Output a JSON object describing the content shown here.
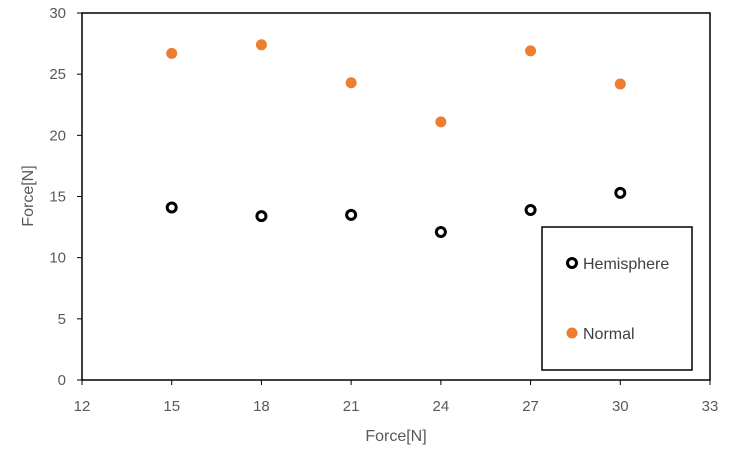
{
  "chart_data": {
    "type": "scatter",
    "title": "",
    "xlabel": "Force[N]",
    "ylabel": "Force[N]",
    "xlim": [
      12,
      33
    ],
    "ylim": [
      0,
      30
    ],
    "xticks": [
      12,
      15,
      18,
      21,
      24,
      27,
      30,
      33
    ],
    "yticks": [
      0,
      5,
      10,
      15,
      20,
      25,
      30
    ],
    "grid": false,
    "legend_position": "bottom-right",
    "series": [
      {
        "name": "Hemisphere",
        "marker": "hollow-circle",
        "color": "#000000",
        "x": [
          15,
          18,
          21,
          24,
          27,
          30
        ],
        "y": [
          14.1,
          13.4,
          13.5,
          12.1,
          13.9,
          15.3
        ]
      },
      {
        "name": "Normal",
        "marker": "filled-circle",
        "color": "#ED7D31",
        "x": [
          15,
          18,
          21,
          24,
          27,
          30
        ],
        "y": [
          26.7,
          27.4,
          24.3,
          21.1,
          26.9,
          24.2
        ]
      }
    ]
  }
}
